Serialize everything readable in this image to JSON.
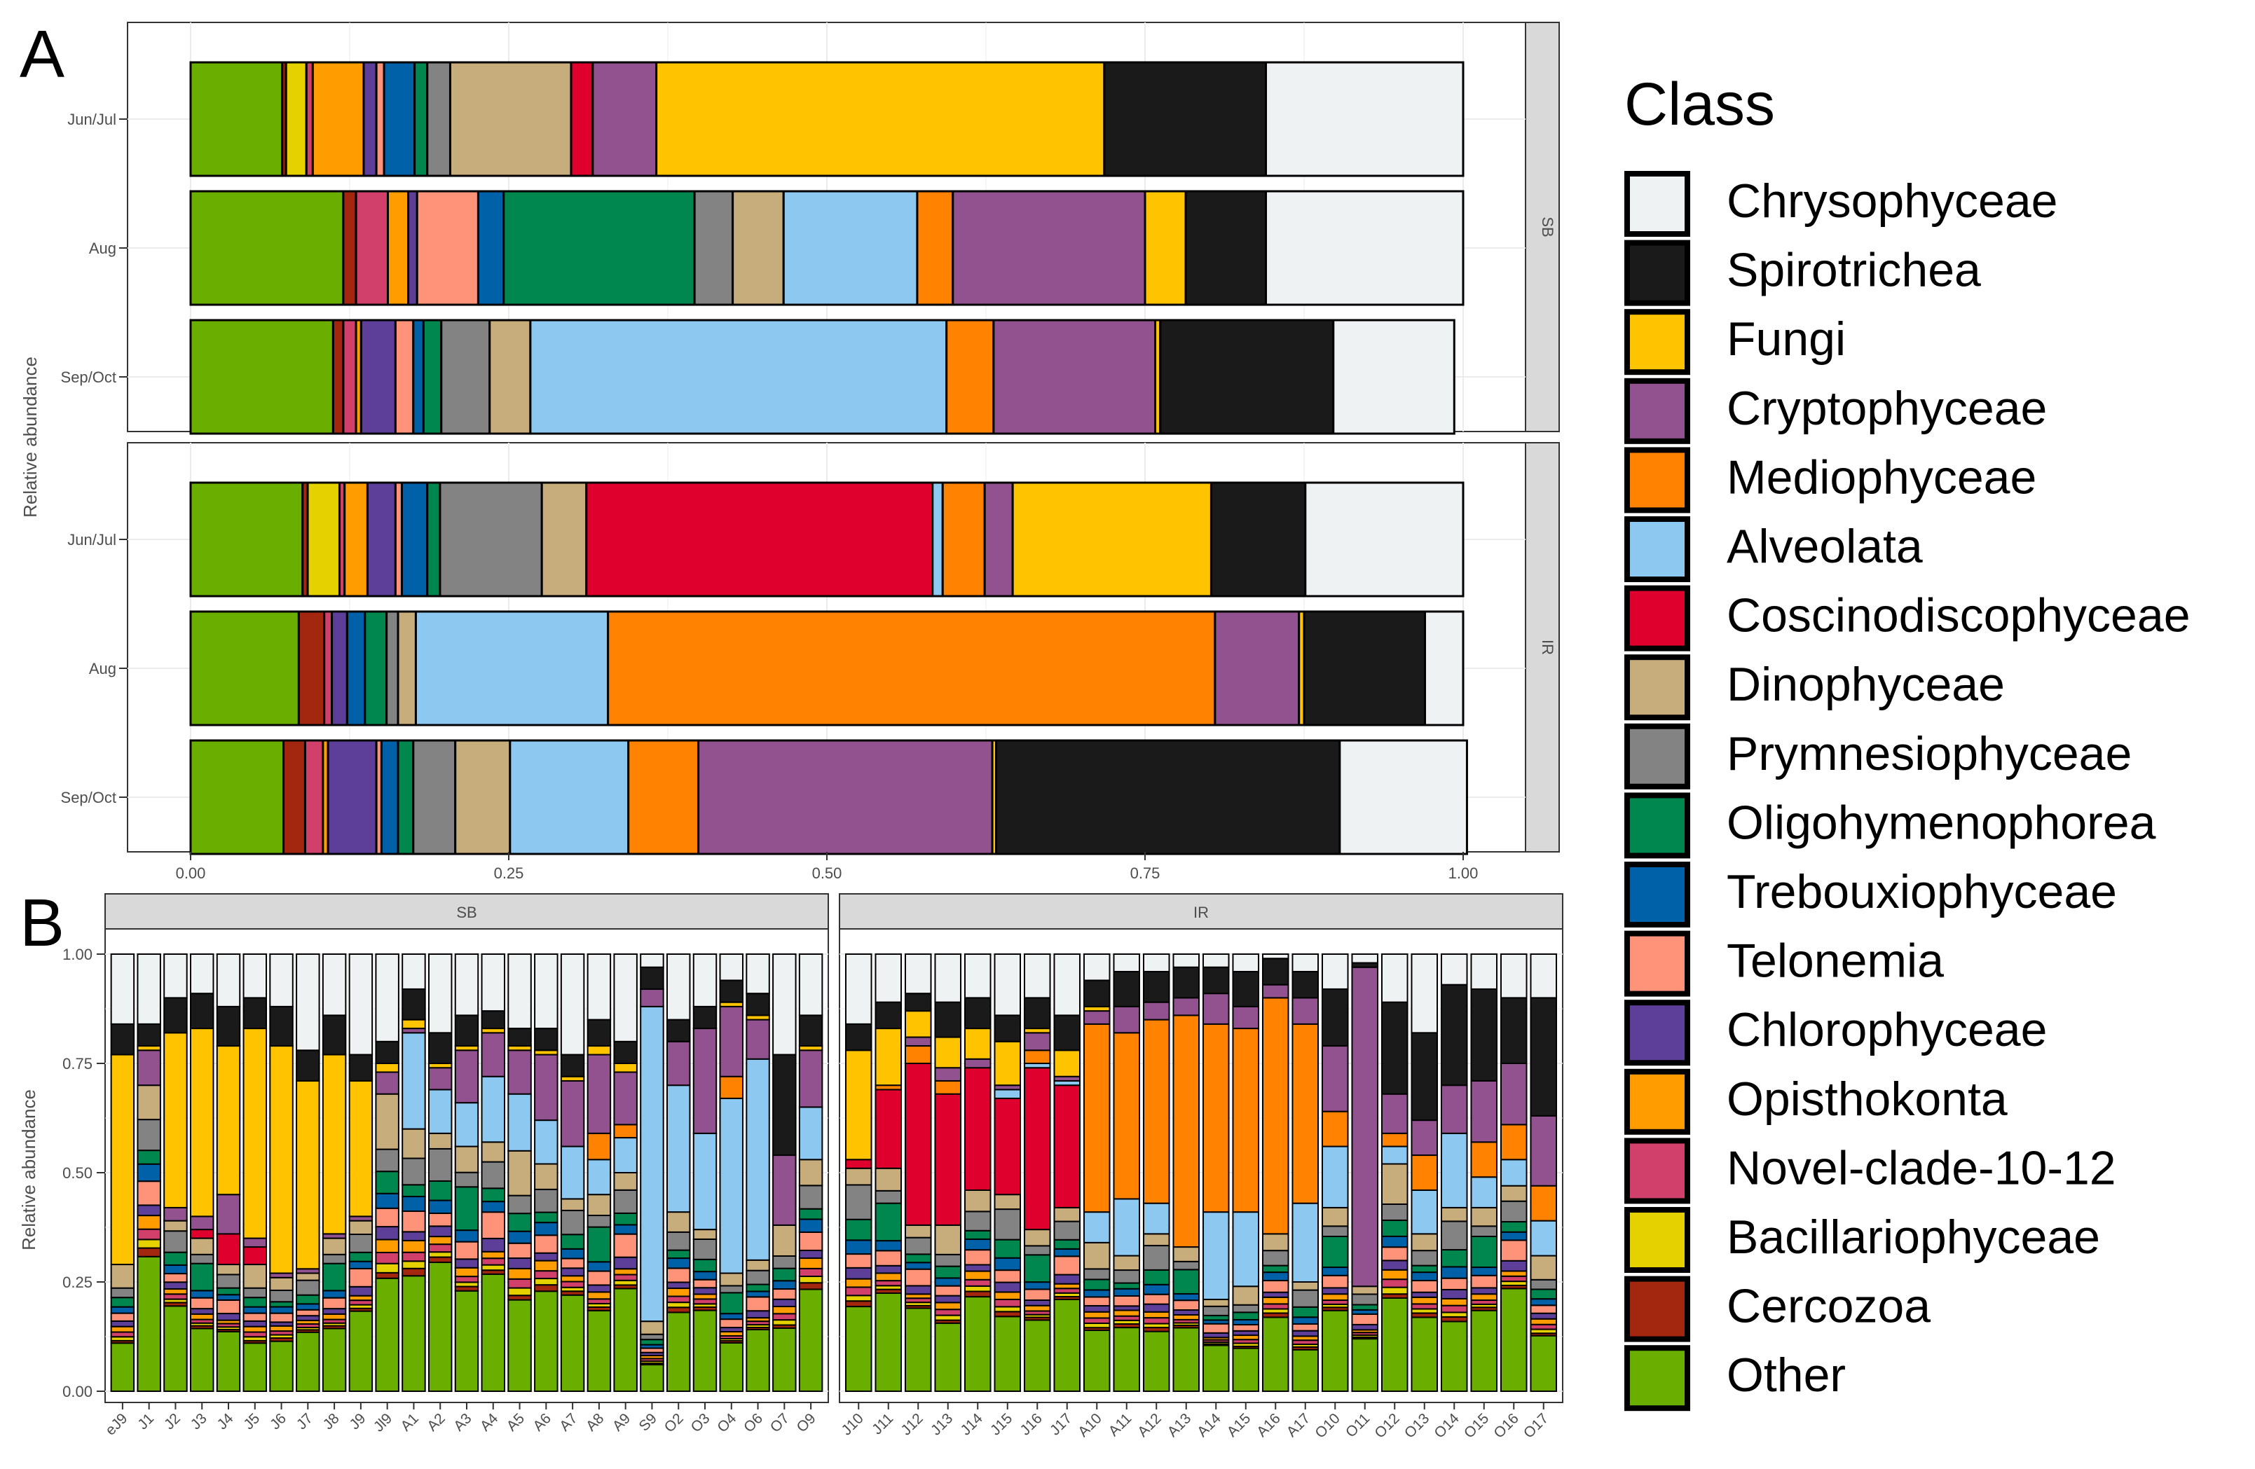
{
  "colors": {
    "Chrysophyceae": "#EEF2F3",
    "Spirotrichea": "#1A1A1A",
    "Fungi": "#FFC300",
    "Cryptophyceae": "#91528F",
    "Mediophyceae": "#FF8200",
    "Alveolata": "#8CC8F0",
    "Coscinodiscophyceae": "#E0002D",
    "Dinophyceae": "#C8AD7C",
    "Prymnesiophyceae": "#838383",
    "Oligohymenophorea": "#00864F",
    "Trebouxiophyceae": "#0060A8",
    "Telonemia": "#FF937A",
    "Chlorophyceae": "#5D3F9A",
    "Opisthokonta": "#FF9D00",
    "Novel-clade-10-12": "#D1406A",
    "Bacillariophyceae": "#E5D100",
    "Cercozoa": "#A3260F",
    "Other": "#6AAF00"
  },
  "legend": {
    "title": "Class",
    "entries": [
      "Chrysophyceae",
      "Spirotrichea",
      "Fungi",
      "Cryptophyceae",
      "Mediophyceae",
      "Alveolata",
      "Coscinodiscophyceae",
      "Dinophyceae",
      "Prymnesiophyceae",
      "Oligohymenophorea",
      "Trebouxiophyceae",
      "Telonemia",
      "Chlorophyceae",
      "Opisthokonta",
      "Novel-clade-10-12",
      "Bacillariophyceae",
      "Cercozoa",
      "Other"
    ]
  },
  "chart_data": [
    {
      "panel": "A",
      "type": "bar",
      "orientation": "horizontal",
      "stacked": true,
      "ylabel": "Relative abundance",
      "xlim": [
        0,
        1
      ],
      "xticks": [
        "0.00",
        "0.25",
        "0.50",
        "0.75",
        "1.00"
      ],
      "stack_order": [
        "Other",
        "Cercozoa",
        "Bacillariophyceae",
        "Novel-clade-10-12",
        "Opisthokonta",
        "Chlorophyceae",
        "Telonemia",
        "Trebouxiophyceae",
        "Oligohymenophorea",
        "Prymnesiophyceae",
        "Dinophyceae",
        "Coscinodiscophyceae",
        "Alveolata",
        "Mediophyceae",
        "Cryptophyceae",
        "Fungi",
        "Spirotrichea",
        "Chrysophyceae"
      ],
      "facets": [
        {
          "label": "SB",
          "rows": [
            {
              "label": "Jun/Jul",
              "values": {
                "Other": 0.072,
                "Cercozoa": 0.003,
                "Bacillariophyceae": 0.016,
                "Novel-clade-10-12": 0.005,
                "Opisthokonta": 0.04,
                "Chlorophyceae": 0.01,
                "Telonemia": 0.006,
                "Trebouxiophyceae": 0.024,
                "Oligohymenophorea": 0.01,
                "Prymnesiophyceae": 0.018,
                "Dinophyceae": 0.095,
                "Coscinodiscophyceae": 0.017,
                "Alveolata": 0.0,
                "Mediophyceae": 0.0,
                "Cryptophyceae": 0.05,
                "Fungi": 0.352,
                "Spirotrichea": 0.127,
                "Chrysophyceae": 0.155
              }
            },
            {
              "label": "Aug",
              "values": {
                "Other": 0.12,
                "Cercozoa": 0.01,
                "Bacillariophyceae": 0.0,
                "Novel-clade-10-12": 0.025,
                "Opisthokonta": 0.016,
                "Chlorophyceae": 0.007,
                "Telonemia": 0.048,
                "Trebouxiophyceae": 0.02,
                "Oligohymenophorea": 0.15,
                "Prymnesiophyceae": 0.03,
                "Dinophyceae": 0.04,
                "Coscinodiscophyceae": 0.0,
                "Alveolata": 0.105,
                "Mediophyceae": 0.028,
                "Cryptophyceae": 0.151,
                "Fungi": 0.032,
                "Spirotrichea": 0.063,
                "Chrysophyceae": 0.155
              }
            },
            {
              "label": "Sep/Oct",
              "values": {
                "Other": 0.112,
                "Cercozoa": 0.008,
                "Bacillariophyceae": 0.0,
                "Novel-clade-10-12": 0.01,
                "Opisthokonta": 0.004,
                "Chlorophyceae": 0.027,
                "Telonemia": 0.014,
                "Trebouxiophyceae": 0.008,
                "Oligohymenophorea": 0.014,
                "Prymnesiophyceae": 0.038,
                "Dinophyceae": 0.032,
                "Coscinodiscophyceae": 0.0,
                "Alveolata": 0.327,
                "Mediophyceae": 0.037,
                "Cryptophyceae": 0.127,
                "Fungi": 0.004,
                "Spirotrichea": 0.136,
                "Chrysophyceae": 0.095
              }
            }
          ]
        },
        {
          "label": "IR",
          "rows": [
            {
              "label": "Jun/Jul",
              "values": {
                "Other": 0.088,
                "Cercozoa": 0.004,
                "Bacillariophyceae": 0.025,
                "Novel-clade-10-12": 0.004,
                "Opisthokonta": 0.018,
                "Chlorophyceae": 0.022,
                "Telonemia": 0.005,
                "Trebouxiophyceae": 0.02,
                "Oligohymenophorea": 0.01,
                "Prymnesiophyceae": 0.08,
                "Dinophyceae": 0.035,
                "Coscinodiscophyceae": 0.272,
                "Alveolata": 0.008,
                "Mediophyceae": 0.033,
                "Cryptophyceae": 0.022,
                "Fungi": 0.156,
                "Spirotrichea": 0.074,
                "Chrysophyceae": 0.124
              }
            },
            {
              "label": "Aug",
              "values": {
                "Other": 0.085,
                "Cercozoa": 0.02,
                "Bacillariophyceae": 0.0,
                "Novel-clade-10-12": 0.006,
                "Opisthokonta": 0.0,
                "Chlorophyceae": 0.012,
                "Telonemia": 0.0,
                "Trebouxiophyceae": 0.014,
                "Oligohymenophorea": 0.017,
                "Prymnesiophyceae": 0.009,
                "Dinophyceae": 0.014,
                "Coscinodiscophyceae": 0.0,
                "Alveolata": 0.151,
                "Mediophyceae": 0.477,
                "Cryptophyceae": 0.066,
                "Fungi": 0.004,
                "Spirotrichea": 0.095,
                "Chrysophyceae": 0.03
              }
            },
            {
              "label": "Sep/Oct",
              "values": {
                "Other": 0.073,
                "Cercozoa": 0.017,
                "Bacillariophyceae": 0.0,
                "Novel-clade-10-12": 0.014,
                "Opisthokonta": 0.004,
                "Chlorophyceae": 0.038,
                "Telonemia": 0.004,
                "Trebouxiophyceae": 0.013,
                "Oligohymenophorea": 0.012,
                "Prymnesiophyceae": 0.033,
                "Dinophyceae": 0.043,
                "Coscinodiscophyceae": 0.0,
                "Alveolata": 0.093,
                "Mediophyceae": 0.055,
                "Cryptophyceae": 0.231,
                "Fungi": 0.003,
                "Spirotrichea": 0.27,
                "Chrysophyceae": 0.1
              }
            }
          ]
        }
      ]
    },
    {
      "panel": "B",
      "type": "bar",
      "orientation": "vertical",
      "stacked": true,
      "ylabel": "Relative abundance",
      "ylim": [
        0,
        1
      ],
      "yticks": [
        "0.00",
        "0.25",
        "0.50",
        "0.75",
        "1.00"
      ],
      "stack_order": [
        "Other",
        "Cercozoa",
        "Bacillariophyceae",
        "Novel-clade-10-12",
        "Opisthokonta",
        "Chlorophyceae",
        "Telonemia",
        "Trebouxiophyceae",
        "Oligohymenophorea",
        "Prymnesiophyceae",
        "Dinophyceae",
        "Coscinodiscophyceae",
        "Alveolata",
        "Mediophyceae",
        "Cryptophyceae",
        "Fungi",
        "Spirotrichea",
        "Chrysophyceae"
      ],
      "facets": [
        {
          "label": "SB",
          "categories": [
            "eJ9",
            "J1",
            "J2",
            "J3",
            "J4",
            "J5",
            "J6",
            "J7",
            "J8",
            "J9",
            "Jl9",
            "A1",
            "A2",
            "A3",
            "A4",
            "A5",
            "A6",
            "A7",
            "A8",
            "A9",
            "S9",
            "O2",
            "O3",
            "O4",
            "O6",
            "O7",
            "O9"
          ],
          "chrysophyceae": [
            0.16,
            0.16,
            0.1,
            0.09,
            0.12,
            0.1,
            0.12,
            0.22,
            0.14,
            0.23,
            0.2,
            0.08,
            0.18,
            0.14,
            0.13,
            0.17,
            0.17,
            0.23,
            0.15,
            0.2,
            0.03,
            0.15,
            0.12,
            0.06,
            0.09,
            0.23,
            0.14
          ],
          "spirotrichea": [
            0.07,
            0.05,
            0.08,
            0.08,
            0.09,
            0.07,
            0.09,
            0.07,
            0.09,
            0.06,
            0.05,
            0.07,
            0.07,
            0.07,
            0.04,
            0.04,
            0.05,
            0.05,
            0.06,
            0.05,
            0.05,
            0.05,
            0.05,
            0.05,
            0.05,
            0.23,
            0.07
          ],
          "fungi": [
            0.48,
            0.01,
            0.4,
            0.43,
            0.34,
            0.48,
            0.52,
            0.43,
            0.41,
            0.31,
            0.02,
            0.02,
            0.01,
            0.01,
            0.01,
            0.01,
            0.01,
            0.01,
            0.02,
            0.02,
            0.0,
            0.0,
            0.0,
            0.01,
            0.01,
            0.0,
            0.01
          ],
          "cryptophyceae": [
            0.0,
            0.08,
            0.03,
            0.03,
            0.09,
            0.02,
            0.01,
            0.01,
            0.01,
            0.01,
            0.05,
            0.01,
            0.05,
            0.12,
            0.1,
            0.1,
            0.15,
            0.15,
            0.18,
            0.12,
            0.04,
            0.1,
            0.24,
            0.16,
            0.09,
            0.16,
            0.13
          ],
          "mediophyceae": [
            0.0,
            0.0,
            0.0,
            0.0,
            0.0,
            0.0,
            0.0,
            0.0,
            0.0,
            0.0,
            0.0,
            0.0,
            0.0,
            0.0,
            0.0,
            0.0,
            0.0,
            0.0,
            0.06,
            0.03,
            0.0,
            0.0,
            0.0,
            0.05,
            0.0,
            0.0,
            0.0
          ],
          "alveolata": [
            0.0,
            0.0,
            0.0,
            0.0,
            0.0,
            0.0,
            0.0,
            0.0,
            0.0,
            0.0,
            0.0,
            0.22,
            0.1,
            0.1,
            0.15,
            0.13,
            0.1,
            0.12,
            0.08,
            0.08,
            0.72,
            0.29,
            0.22,
            0.4,
            0.46,
            0.0,
            0.12
          ],
          "coscinodiscophyceae": [
            0.0,
            0.0,
            0.0,
            0.02,
            0.07,
            0.04,
            0.0,
            0.0,
            0.0,
            0.0,
            0.0,
            0.0,
            0.0,
            0.0,
            0.0,
            0.0,
            0.0,
            0.0,
            0.0,
            0.0,
            0.0,
            0.0,
            0.0,
            0.0,
            0.0,
            0.0,
            0.0
          ]
        },
        {
          "label": "IR",
          "categories": [
            "J10",
            "J11",
            "J12",
            "J13",
            "J14",
            "J15",
            "J16",
            "J17",
            "A10",
            "A11",
            "A12",
            "A13",
            "A14",
            "A15",
            "A16",
            "A17",
            "O10",
            "O11",
            "O12",
            "O13",
            "O14",
            "O15",
            "O16",
            "O17"
          ],
          "chrysophyceae": [
            0.16,
            0.11,
            0.09,
            0.11,
            0.1,
            0.14,
            0.1,
            0.14,
            0.06,
            0.04,
            0.04,
            0.03,
            0.03,
            0.04,
            0.01,
            0.04,
            0.08,
            0.02,
            0.11,
            0.18,
            0.07,
            0.08,
            0.1,
            0.1
          ],
          "spirotrichea": [
            0.06,
            0.06,
            0.04,
            0.08,
            0.07,
            0.06,
            0.07,
            0.08,
            0.06,
            0.08,
            0.07,
            0.07,
            0.06,
            0.08,
            0.06,
            0.06,
            0.13,
            0.01,
            0.21,
            0.2,
            0.23,
            0.21,
            0.15,
            0.27
          ],
          "fungi": [
            0.25,
            0.13,
            0.06,
            0.07,
            0.07,
            0.1,
            0.01,
            0.06,
            0.01,
            0.0,
            0.0,
            0.0,
            0.0,
            0.0,
            0.0,
            0.0,
            0.0,
            0.0,
            0.0,
            0.0,
            0.0,
            0.0,
            0.0,
            0.0
          ],
          "cryptophyceae": [
            0.0,
            0.0,
            0.02,
            0.03,
            0.02,
            0.01,
            0.04,
            0.01,
            0.03,
            0.06,
            0.04,
            0.04,
            0.07,
            0.05,
            0.03,
            0.06,
            0.15,
            0.73,
            0.09,
            0.08,
            0.11,
            0.14,
            0.14,
            0.16
          ],
          "mediophyceae": [
            0.0,
            0.01,
            0.04,
            0.03,
            0.0,
            0.0,
            0.03,
            0.0,
            0.43,
            0.38,
            0.42,
            0.53,
            0.43,
            0.42,
            0.54,
            0.41,
            0.08,
            0.0,
            0.03,
            0.08,
            0.0,
            0.08,
            0.08,
            0.08
          ],
          "alveolata": [
            0.0,
            0.0,
            0.0,
            0.0,
            0.0,
            0.02,
            0.01,
            0.01,
            0.07,
            0.13,
            0.07,
            0.0,
            0.2,
            0.17,
            0.0,
            0.18,
            0.14,
            0.0,
            0.04,
            0.1,
            0.17,
            0.07,
            0.06,
            0.08
          ],
          "coscinodiscophyceae": [
            0.02,
            0.18,
            0.37,
            0.3,
            0.28,
            0.22,
            0.37,
            0.28,
            0.0,
            0.0,
            0.0,
            0.0,
            0.0,
            0.0,
            0.0,
            0.0,
            0.0,
            0.0,
            0.0,
            0.0,
            0.0,
            0.0,
            0.0,
            0.0
          ]
        }
      ]
    }
  ]
}
